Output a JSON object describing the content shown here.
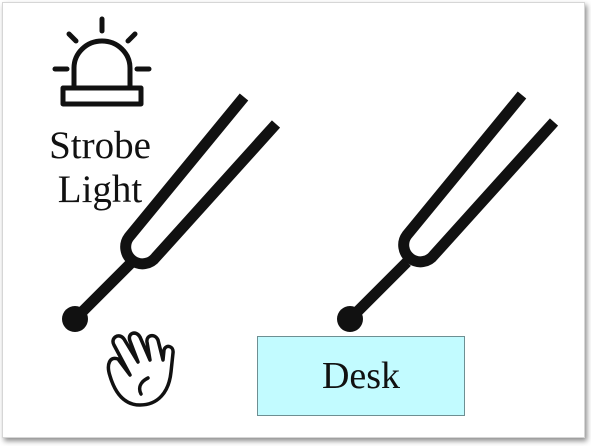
{
  "strobe": {
    "icon": "strobe-light-icon",
    "line1": "Strobe",
    "line2": "Light"
  },
  "hand": {
    "icon": "hand-wave-icon"
  },
  "fork_left": {
    "icon": "tuning-fork-icon"
  },
  "fork_right": {
    "icon": "tuning-fork-icon"
  },
  "desk": {
    "label": "Desk",
    "color": "#c2fbff"
  },
  "colors": {
    "ink": "#111111",
    "background": "#ffffff"
  }
}
